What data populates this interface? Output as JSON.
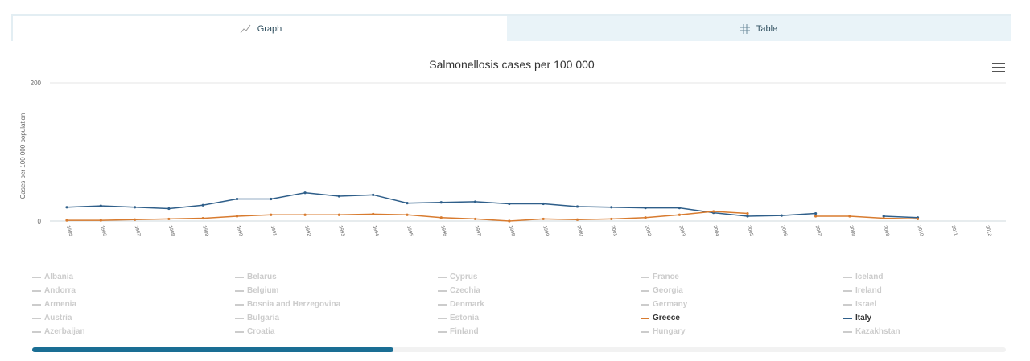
{
  "tabs": [
    {
      "label": "Graph",
      "icon": "line-chart-icon",
      "active": true
    },
    {
      "label": "Table",
      "icon": "grid-icon",
      "active": false
    }
  ],
  "chart_data": {
    "type": "line",
    "title": "Salmonellosis cases per 100 000",
    "ylabel": "Cases per 100 000 population",
    "xlabel": "",
    "ylim": [
      0,
      200
    ],
    "yticks": [
      "0",
      "200"
    ],
    "categories": [
      "1985",
      "1986",
      "1987",
      "1988",
      "1989",
      "1990",
      "1991",
      "1992",
      "1993",
      "1994",
      "1995",
      "1996",
      "1997",
      "1998",
      "1999",
      "2000",
      "2001",
      "2002",
      "2003",
      "2004",
      "2005",
      "2006",
      "2007",
      "2008",
      "2009",
      "2010",
      "2011",
      "2012"
    ],
    "series": [
      {
        "name": "Italy",
        "color": "#2f5f8a",
        "values": [
          20,
          22,
          20,
          18,
          23,
          32,
          32,
          41,
          36,
          38,
          26,
          27,
          28,
          25,
          25,
          21,
          20,
          19,
          19,
          12,
          7,
          8,
          11,
          null,
          7,
          5,
          null,
          null
        ]
      },
      {
        "name": "Greece",
        "color": "#d87b2f",
        "values": [
          1,
          1,
          2,
          3,
          4,
          7,
          9,
          9,
          9,
          10,
          9,
          5,
          3,
          0,
          3,
          2,
          3,
          5,
          9,
          14,
          11,
          null,
          7,
          7,
          4,
          3,
          null,
          null
        ]
      }
    ]
  },
  "legend": {
    "columns": [
      [
        "Albania",
        "Andorra",
        "Armenia",
        "Austria",
        "Azerbaijan"
      ],
      [
        "Belarus",
        "Belgium",
        "Bosnia and Herzegovina",
        "Bulgaria",
        "Croatia"
      ],
      [
        "Cyprus",
        "Czechia",
        "Denmark",
        "Estonia",
        "Finland"
      ],
      [
        "France",
        "Georgia",
        "Germany",
        "Greece",
        "Hungary"
      ],
      [
        "Iceland",
        "Ireland",
        "Israel",
        "Italy",
        "Kazakhstan"
      ]
    ],
    "active": {
      "Greece": "#d87b2f",
      "Italy": "#2f5f8a"
    },
    "inactive_color": "#cccccc"
  },
  "menu": {
    "icon": "hamburger-menu-icon"
  }
}
